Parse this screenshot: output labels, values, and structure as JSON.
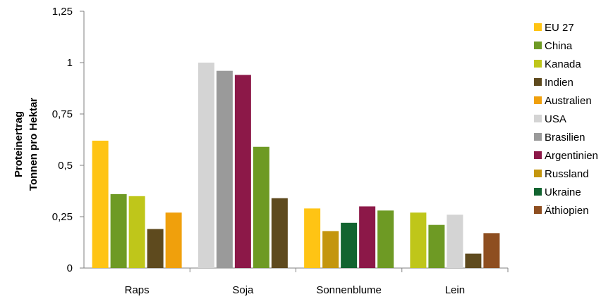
{
  "chart_data": {
    "type": "bar",
    "ylabel_lines": [
      "Proteinertrag",
      "Tonnen pro Hektar"
    ],
    "ylim": [
      0,
      1.25
    ],
    "yticks": [
      {
        "value": 0,
        "label": "0"
      },
      {
        "value": 0.25,
        "label": "0,25"
      },
      {
        "value": 0.5,
        "label": "0,5"
      },
      {
        "value": 0.75,
        "label": "0,75"
      },
      {
        "value": 1,
        "label": "1"
      },
      {
        "value": 1.25,
        "label": "1,25"
      }
    ],
    "grid": false,
    "legend_position": "right",
    "legend": [
      {
        "name": "EU 27",
        "color": "#FFC414"
      },
      {
        "name": "China",
        "color": "#6E9A24"
      },
      {
        "name": "Kanada",
        "color": "#BFC61A"
      },
      {
        "name": "Indien",
        "color": "#5E4A1E"
      },
      {
        "name": "Australien",
        "color": "#F0A00C"
      },
      {
        "name": "USA",
        "color": "#D4D4D4"
      },
      {
        "name": "Brasilien",
        "color": "#9A9A9A"
      },
      {
        "name": "Argentinien",
        "color": "#8C1848"
      },
      {
        "name": "Russland",
        "color": "#C4960E"
      },
      {
        "name": "Ukraine",
        "color": "#126430"
      },
      {
        "name": "Äthiopien",
        "color": "#8E4E20"
      }
    ],
    "groups": [
      {
        "category": "Raps",
        "bars": [
          {
            "series": "EU 27",
            "value": 0.62
          },
          {
            "series": "China",
            "value": 0.36
          },
          {
            "series": "Kanada",
            "value": 0.35
          },
          {
            "series": "Indien",
            "value": 0.19
          },
          {
            "series": "Australien",
            "value": 0.27
          }
        ]
      },
      {
        "category": "Soja",
        "bars": [
          {
            "series": "USA",
            "value": 1.0
          },
          {
            "series": "Brasilien",
            "value": 0.96
          },
          {
            "series": "Argentinien",
            "value": 0.94
          },
          {
            "series": "China",
            "value": 0.59
          },
          {
            "series": "Indien",
            "value": 0.34
          }
        ]
      },
      {
        "category": "Sonnenblume",
        "bars": [
          {
            "series": "EU 27",
            "value": 0.29
          },
          {
            "series": "Russland",
            "value": 0.18
          },
          {
            "series": "Ukraine",
            "value": 0.22
          },
          {
            "series": "Argentinien",
            "value": 0.3
          },
          {
            "series": "China",
            "value": 0.28
          }
        ]
      },
      {
        "category": "Lein",
        "bars": [
          {
            "series": "Kanada",
            "value": 0.27
          },
          {
            "series": "China",
            "value": 0.21
          },
          {
            "series": "USA",
            "value": 0.26
          },
          {
            "series": "Indien",
            "value": 0.07
          },
          {
            "series": "Äthiopien",
            "value": 0.17
          }
        ]
      }
    ]
  }
}
